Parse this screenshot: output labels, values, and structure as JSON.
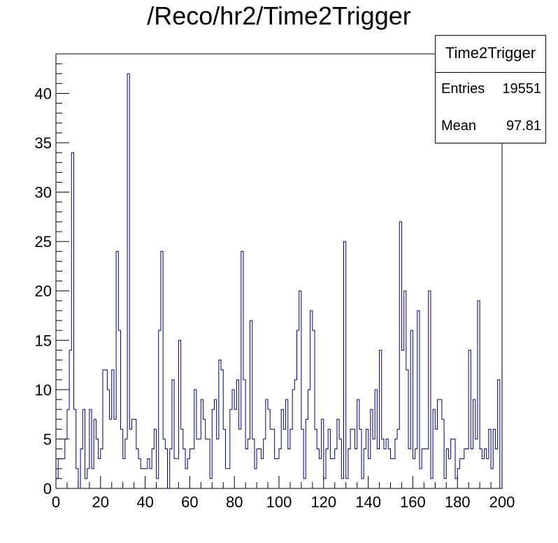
{
  "chart_data": {
    "type": "bar",
    "title": "/Reco/hr2/Time2Trigger",
    "xlim": [
      0,
      200
    ],
    "ylim": [
      0,
      44
    ],
    "bin_width": 1,
    "x_ticks": [
      0,
      20,
      40,
      60,
      80,
      100,
      120,
      140,
      160,
      180,
      200
    ],
    "y_ticks": [
      0,
      5,
      10,
      15,
      20,
      25,
      30,
      35,
      40
    ],
    "line_color": "#000080",
    "stats": {
      "name": "Time2Trigger",
      "entries_label": "Entries",
      "entries": "19551",
      "mean_label": "Mean",
      "mean": "97.81"
    },
    "values": [
      1,
      3,
      3,
      3,
      5,
      8,
      14,
      34,
      8,
      2,
      0,
      4,
      8,
      1,
      2,
      8,
      2,
      7,
      5,
      3,
      4,
      12,
      12,
      10,
      7,
      12,
      7,
      24,
      16,
      6,
      3,
      5,
      42,
      6,
      7,
      7,
      4,
      3,
      2,
      2,
      2,
      3,
      2,
      4,
      6,
      1,
      16,
      24,
      5,
      4,
      0,
      4,
      11,
      3,
      3,
      15,
      6,
      4,
      2,
      3,
      4,
      4,
      10,
      5,
      5,
      9,
      7,
      5,
      5,
      1,
      8,
      9,
      5,
      13,
      12,
      6,
      2,
      2,
      8,
      10,
      8,
      11,
      6,
      24,
      11,
      4,
      5,
      17,
      5,
      2,
      4,
      4,
      3,
      5,
      9,
      8,
      6,
      6,
      3,
      3,
      4,
      8,
      6,
      9,
      4,
      6,
      10,
      11,
      16,
      20,
      6,
      1,
      7,
      10,
      18,
      16,
      6,
      4,
      3,
      7,
      1,
      4,
      6,
      3,
      3,
      4,
      7,
      5,
      1,
      25,
      1,
      4,
      6,
      6,
      4,
      9,
      6,
      1,
      4,
      6,
      3,
      8,
      5,
      10,
      4,
      14,
      5,
      4,
      5,
      4,
      3,
      3,
      5,
      6,
      27,
      14,
      20,
      12,
      4,
      16,
      3,
      4,
      18,
      2,
      4,
      4,
      4,
      20,
      1,
      8,
      6,
      9,
      9,
      7,
      1,
      4,
      3,
      5,
      5,
      1,
      2,
      3,
      3,
      4,
      4,
      14,
      4,
      9,
      5,
      19,
      4,
      3,
      4,
      3,
      6,
      2,
      6,
      4,
      11
    ]
  }
}
